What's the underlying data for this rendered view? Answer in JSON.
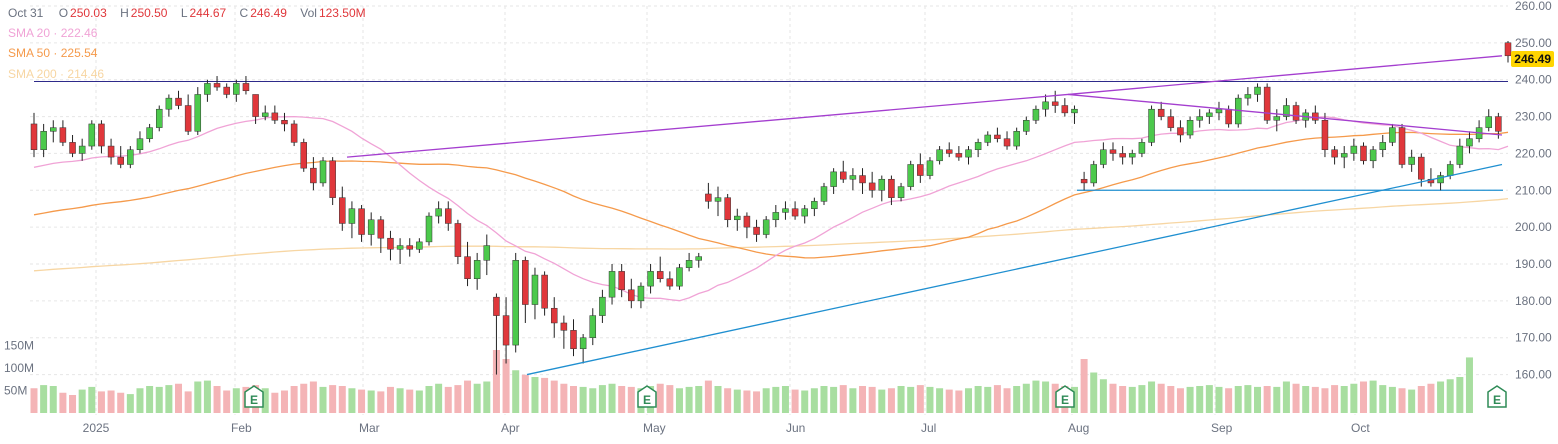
{
  "legend": {
    "date": "Oct 31",
    "open_label": "O",
    "open": "250.03",
    "high_label": "H",
    "high": "250.50",
    "low_label": "L",
    "low": "244.67",
    "close_label": "C",
    "close": "246.49",
    "vol_label": "Vol",
    "vol": "123.50M",
    "sma20_label": "SMA 20",
    "sma20": "222.46",
    "sma50_label": "SMA 50",
    "sma50": "225.54",
    "sma200_label": "SMA 200",
    "sma200": "214.46",
    "separator": "·"
  },
  "last_price_badge": "246.49",
  "colors": {
    "up": "#4cc94c",
    "down": "#e0373b",
    "sma20": "#f0a3d6",
    "sma50": "#f59a4b",
    "sma200": "#f7d6a3",
    "trend_purple": "#a43ecf",
    "trend_blue": "#1f8fd0",
    "hline_navy": "#2e2a8a",
    "vol_up": "#a8dea0",
    "vol_down": "#f4b4b6",
    "grid": "#e6e6e6",
    "text": "#6b7280",
    "badge": "#ffd500"
  },
  "chart_data": {
    "type": "candlestick",
    "ylim": [
      155,
      260
    ],
    "y_ticks": [
      "260.00",
      "250.00",
      "240.00",
      "230.00",
      "220.00",
      "210.00",
      "200.00",
      "190.00",
      "180.00",
      "170.00",
      "160.00"
    ],
    "x_ticks": [
      "2025",
      "Feb",
      "Mar",
      "Apr",
      "May",
      "Jun",
      "Jul",
      "Aug",
      "Sep",
      "Oct"
    ],
    "volume_ticks": [
      "150M",
      "100M",
      "50M"
    ],
    "earnings_marker": "E",
    "earnings_dates": [
      "Jan 30",
      "May 1",
      "Jul 31",
      "Oct 30"
    ],
    "horizontal_levels": [
      239.5,
      210.0
    ],
    "ohlc": [
      [
        228,
        231,
        219,
        221
      ],
      [
        221,
        228,
        219,
        226
      ],
      [
        226,
        229,
        223,
        227
      ],
      [
        227,
        229,
        222,
        223
      ],
      [
        223,
        225,
        219,
        220
      ],
      [
        220,
        224,
        218,
        222
      ],
      [
        222,
        229,
        221,
        228
      ],
      [
        228,
        229,
        220,
        222
      ],
      [
        222,
        224,
        217,
        219
      ],
      [
        219,
        222,
        216,
        217
      ],
      [
        217,
        222,
        216,
        221
      ],
      [
        221,
        226,
        220,
        224
      ],
      [
        224,
        228,
        223,
        227
      ],
      [
        227,
        233,
        226,
        232
      ],
      [
        232,
        236,
        230,
        235
      ],
      [
        235,
        237,
        232,
        233
      ],
      [
        233,
        236,
        225,
        226
      ],
      [
        226,
        238,
        225,
        236
      ],
      [
        236,
        240,
        234,
        239
      ],
      [
        239,
        241,
        237,
        238
      ],
      [
        238,
        239,
        235,
        236
      ],
      [
        236,
        240,
        234,
        239
      ],
      [
        239,
        241,
        236,
        237
      ],
      [
        236,
        236,
        228,
        230
      ],
      [
        230,
        233,
        229,
        231
      ],
      [
        231,
        233,
        228,
        229
      ],
      [
        229,
        231,
        226,
        228
      ],
      [
        228,
        229,
        222,
        223
      ],
      [
        223,
        224,
        215,
        216
      ],
      [
        216,
        219,
        210,
        212
      ],
      [
        212,
        219,
        211,
        218
      ],
      [
        218,
        219,
        206,
        208
      ],
      [
        208,
        211,
        199,
        201
      ],
      [
        201,
        207,
        197,
        205
      ],
      [
        205,
        206,
        196,
        198
      ],
      [
        198,
        204,
        195,
        202
      ],
      [
        202,
        203,
        193,
        197
      ],
      [
        197,
        199,
        191,
        194
      ],
      [
        194,
        197,
        190,
        195
      ],
      [
        195,
        197,
        192,
        194
      ],
      [
        194,
        197,
        193,
        196
      ],
      [
        196,
        204,
        195,
        203
      ],
      [
        203,
        207,
        201,
        205
      ],
      [
        205,
        207,
        199,
        201
      ],
      [
        201,
        202,
        190,
        192
      ],
      [
        192,
        196,
        184,
        186
      ],
      [
        186,
        193,
        183,
        191
      ],
      [
        191,
        198,
        187,
        195
      ],
      [
        181,
        182,
        160,
        176
      ],
      [
        176,
        181,
        163,
        168
      ],
      [
        168,
        193,
        166,
        191
      ],
      [
        191,
        192,
        174,
        179
      ],
      [
        179,
        189,
        175,
        187
      ],
      [
        187,
        188,
        176,
        178
      ],
      [
        178,
        181,
        170,
        174
      ],
      [
        174,
        176,
        167,
        172
      ],
      [
        172,
        175,
        165,
        167
      ],
      [
        167,
        171,
        163,
        170
      ],
      [
        170,
        178,
        168,
        176
      ],
      [
        176,
        183,
        174,
        181
      ],
      [
        181,
        190,
        179,
        188
      ],
      [
        188,
        190,
        181,
        183
      ],
      [
        183,
        186,
        178,
        180
      ],
      [
        180,
        185,
        178,
        184
      ],
      [
        184,
        190,
        182,
        188
      ],
      [
        188,
        192,
        185,
        186
      ],
      [
        186,
        188,
        183,
        184
      ],
      [
        184,
        190,
        183,
        189
      ],
      [
        189,
        193,
        188,
        191
      ],
      [
        191,
        193,
        189,
        192
      ],
      [
        209,
        212,
        205,
        207
      ],
      [
        207,
        211,
        203,
        208
      ],
      [
        208,
        209,
        200,
        202
      ],
      [
        202,
        205,
        199,
        203
      ],
      [
        203,
        204,
        197,
        200
      ],
      [
        200,
        202,
        196,
        198
      ],
      [
        198,
        203,
        197,
        202
      ],
      [
        202,
        206,
        200,
        204
      ],
      [
        204,
        207,
        202,
        205
      ],
      [
        205,
        207,
        202,
        203
      ],
      [
        203,
        206,
        201,
        205
      ],
      [
        205,
        208,
        203,
        207
      ],
      [
        207,
        212,
        206,
        211
      ],
      [
        211,
        216,
        209,
        215
      ],
      [
        215,
        218,
        212,
        213
      ],
      [
        213,
        216,
        210,
        214
      ],
      [
        214,
        216,
        209,
        212
      ],
      [
        212,
        215,
        208,
        210
      ],
      [
        210,
        214,
        207,
        213
      ],
      [
        213,
        214,
        206,
        208
      ],
      [
        208,
        212,
        207,
        211
      ],
      [
        211,
        218,
        210,
        217
      ],
      [
        217,
        220,
        212,
        214
      ],
      [
        214,
        219,
        213,
        218
      ],
      [
        218,
        222,
        217,
        221
      ],
      [
        221,
        223,
        219,
        220
      ],
      [
        220,
        222,
        218,
        219
      ],
      [
        219,
        222,
        217,
        221
      ],
      [
        221,
        224,
        219,
        223
      ],
      [
        223,
        226,
        222,
        225
      ],
      [
        225,
        227,
        223,
        224
      ],
      [
        224,
        226,
        221,
        222
      ],
      [
        222,
        227,
        221,
        226
      ],
      [
        226,
        230,
        225,
        229
      ],
      [
        229,
        233,
        228,
        232
      ],
      [
        232,
        236,
        230,
        234
      ],
      [
        234,
        237,
        231,
        233
      ],
      [
        233,
        235,
        230,
        231
      ],
      [
        231,
        233,
        228,
        232
      ],
      [
        213,
        215,
        210,
        212
      ],
      [
        212,
        218,
        211,
        217
      ],
      [
        217,
        223,
        216,
        221
      ],
      [
        221,
        223,
        218,
        220
      ],
      [
        220,
        222,
        217,
        219
      ],
      [
        219,
        221,
        217,
        220
      ],
      [
        220,
        224,
        219,
        223
      ],
      [
        223,
        233,
        222,
        232
      ],
      [
        232,
        234,
        229,
        230
      ],
      [
        230,
        232,
        226,
        227
      ],
      [
        227,
        229,
        223,
        225
      ],
      [
        225,
        230,
        224,
        229
      ],
      [
        229,
        232,
        227,
        230
      ],
      [
        230,
        232,
        228,
        231
      ],
      [
        231,
        234,
        229,
        232
      ],
      [
        232,
        233,
        227,
        228
      ],
      [
        228,
        236,
        227,
        235
      ],
      [
        235,
        238,
        233,
        236
      ],
      [
        236,
        239,
        234,
        238
      ],
      [
        238,
        239,
        228,
        229
      ],
      [
        229,
        232,
        226,
        230
      ],
      [
        230,
        235,
        229,
        233
      ],
      [
        233,
        234,
        228,
        229
      ],
      [
        229,
        232,
        227,
        231
      ],
      [
        231,
        233,
        228,
        229
      ],
      [
        229,
        231,
        219,
        221
      ],
      [
        221,
        222,
        217,
        219
      ],
      [
        219,
        222,
        216,
        220
      ],
      [
        220,
        224,
        218,
        222
      ],
      [
        222,
        223,
        217,
        218
      ],
      [
        218,
        222,
        216,
        221
      ],
      [
        221,
        225,
        219,
        223
      ],
      [
        223,
        228,
        222,
        227
      ],
      [
        227,
        228,
        216,
        217
      ],
      [
        217,
        221,
        215,
        219
      ],
      [
        219,
        220,
        211,
        213
      ],
      [
        213,
        216,
        211,
        212
      ],
      [
        212,
        215,
        210,
        214
      ],
      [
        214,
        218,
        213,
        217
      ],
      [
        217,
        224,
        216,
        222
      ],
      [
        222,
        226,
        220,
        224
      ],
      [
        224,
        229,
        223,
        227
      ],
      [
        227,
        232,
        226,
        230
      ],
      [
        230,
        231,
        224,
        226
      ],
      [
        250.03,
        250.5,
        244.67,
        246.49
      ]
    ],
    "volume_millions": [
      55,
      62,
      60,
      45,
      40,
      52,
      58,
      48,
      50,
      45,
      42,
      55,
      60,
      58,
      62,
      65,
      48,
      70,
      72,
      60,
      50,
      55,
      58,
      62,
      55,
      45,
      50,
      60,
      65,
      70,
      58,
      62,
      60,
      55,
      52,
      50,
      48,
      58,
      55,
      52,
      50,
      60,
      65,
      58,
      62,
      72,
      65,
      70,
      140,
      120,
      95,
      85,
      80,
      78,
      72,
      65,
      60,
      58,
      55,
      62,
      65,
      60,
      58,
      55,
      60,
      65,
      62,
      55,
      58,
      60,
      72,
      60,
      55,
      52,
      50,
      48,
      55,
      58,
      60,
      52,
      50,
      55,
      60,
      58,
      62,
      55,
      60,
      58,
      52,
      55,
      60,
      58,
      62,
      58,
      55,
      52,
      50,
      55,
      60,
      58,
      62,
      55,
      60,
      65,
      72,
      70,
      65,
      60,
      58,
      120,
      90,
      75,
      65,
      60,
      58,
      62,
      70,
      65,
      60,
      55,
      58,
      60,
      62,
      58,
      55,
      60,
      62,
      58,
      60,
      58,
      70,
      65,
      60,
      58,
      55,
      62,
      60,
      65,
      70,
      72,
      62,
      58,
      55,
      52,
      60,
      65,
      70,
      75,
      80,
      123.5
    ]
  }
}
